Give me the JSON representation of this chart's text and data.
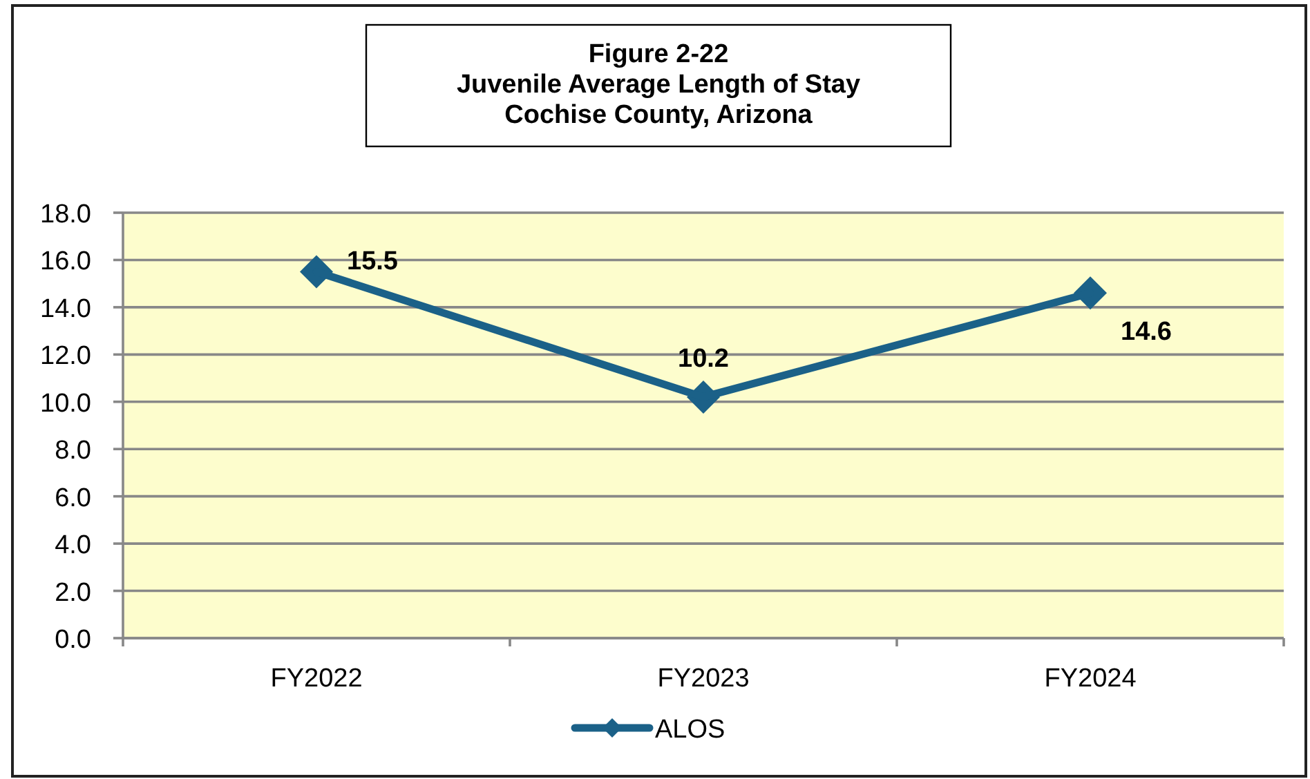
{
  "chart_data": {
    "type": "line",
    "title": "Figure 2-22\nJuvenile Average Length of Stay\nCochise County, Arizona",
    "categories": [
      "FY2022",
      "FY2023",
      "FY2024"
    ],
    "series": [
      {
        "name": "ALOS",
        "color": "#1b6188",
        "values": [
          15.5,
          10.2,
          14.6
        ]
      }
    ],
    "ylim": [
      0,
      18
    ],
    "yticks": [
      {
        "value": 0,
        "label": "0.0"
      },
      {
        "value": 2,
        "label": "2.0"
      },
      {
        "value": 4,
        "label": "4.0"
      },
      {
        "value": 6,
        "label": "6.0"
      },
      {
        "value": 8,
        "label": "8.0"
      },
      {
        "value": 10,
        "label": "10.0"
      },
      {
        "value": 12,
        "label": "12.0"
      },
      {
        "value": 14,
        "label": "14.0"
      },
      {
        "value": 16,
        "label": "16.0"
      },
      {
        "value": 18,
        "label": "18.0"
      }
    ],
    "grid": "y",
    "legend": "bottom",
    "marker": "diamond",
    "line_style": "solid",
    "data_labels": true
  }
}
